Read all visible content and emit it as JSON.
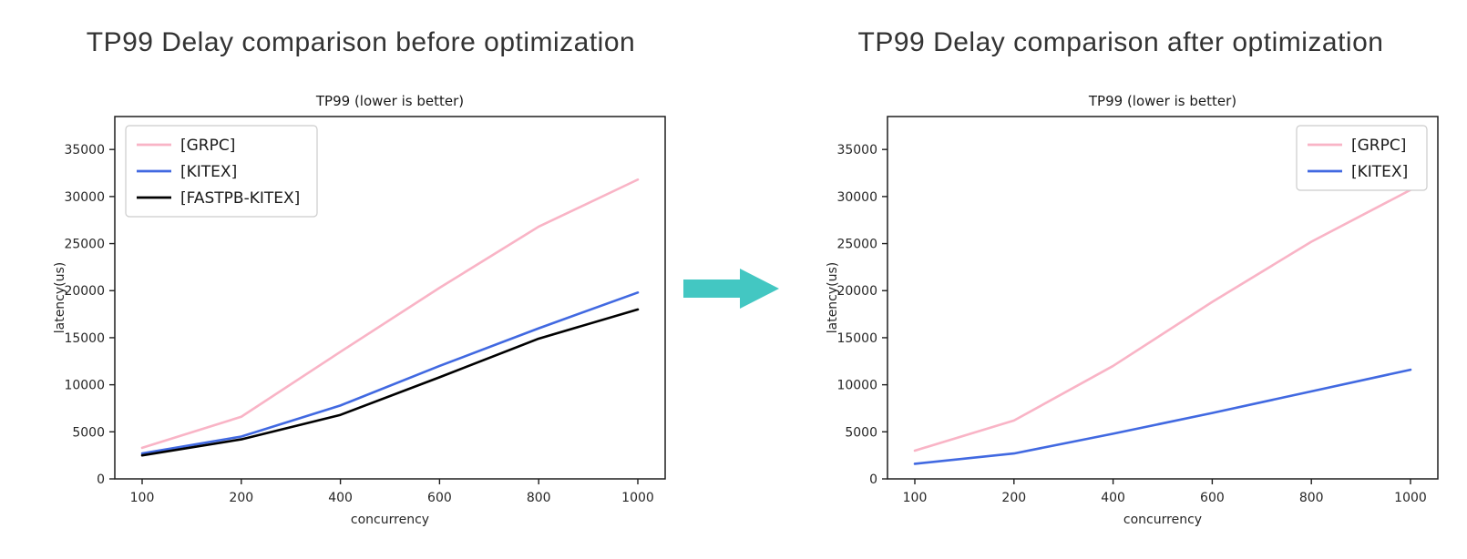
{
  "arrow": {
    "label": "before-to-after",
    "color": "#43c7c2"
  },
  "axis": {
    "spine_color": "#1f1f1f",
    "tick_color": "#262626"
  },
  "chart_data": [
    {
      "type": "line",
      "figure_title": "TP99 Delay comparison before optimization",
      "title": "TP99 (lower is better)",
      "xlabel": "concurrency",
      "ylabel": "latency(us)",
      "categories": [
        100,
        200,
        400,
        600,
        800,
        1000
      ],
      "yticks": [
        0,
        5000,
        10000,
        15000,
        20000,
        25000,
        30000,
        35000
      ],
      "ylim": [
        0,
        38500
      ],
      "grid": false,
      "legend_position": "upper left",
      "series": [
        {
          "name": "[GRPC]",
          "color": "#f9b4c6",
          "values": [
            3300,
            6600,
            13500,
            20300,
            26800,
            31800
          ]
        },
        {
          "name": "[KITEX]",
          "color": "#4169e1",
          "values": [
            2700,
            4500,
            7800,
            12000,
            16000,
            19800
          ]
        },
        {
          "name": "[FASTPB-KITEX]",
          "color": "#000000",
          "values": [
            2500,
            4200,
            6800,
            10800,
            14900,
            18000
          ]
        }
      ]
    },
    {
      "type": "line",
      "figure_title": "TP99 Delay comparison after optimization",
      "title": "TP99 (lower is better)",
      "xlabel": "concurrency",
      "ylabel": "latency(us)",
      "categories": [
        100,
        200,
        400,
        600,
        800,
        1000
      ],
      "yticks": [
        0,
        5000,
        10000,
        15000,
        20000,
        25000,
        30000,
        35000
      ],
      "ylim": [
        0,
        38500
      ],
      "grid": false,
      "legend_position": "upper right",
      "series": [
        {
          "name": "[GRPC]",
          "color": "#f9b4c6",
          "values": [
            3000,
            6200,
            12000,
            18800,
            25200,
            30700
          ]
        },
        {
          "name": "[KITEX]",
          "color": "#4169e1",
          "values": [
            1600,
            2700,
            4800,
            7000,
            9300,
            11600
          ]
        }
      ]
    }
  ]
}
